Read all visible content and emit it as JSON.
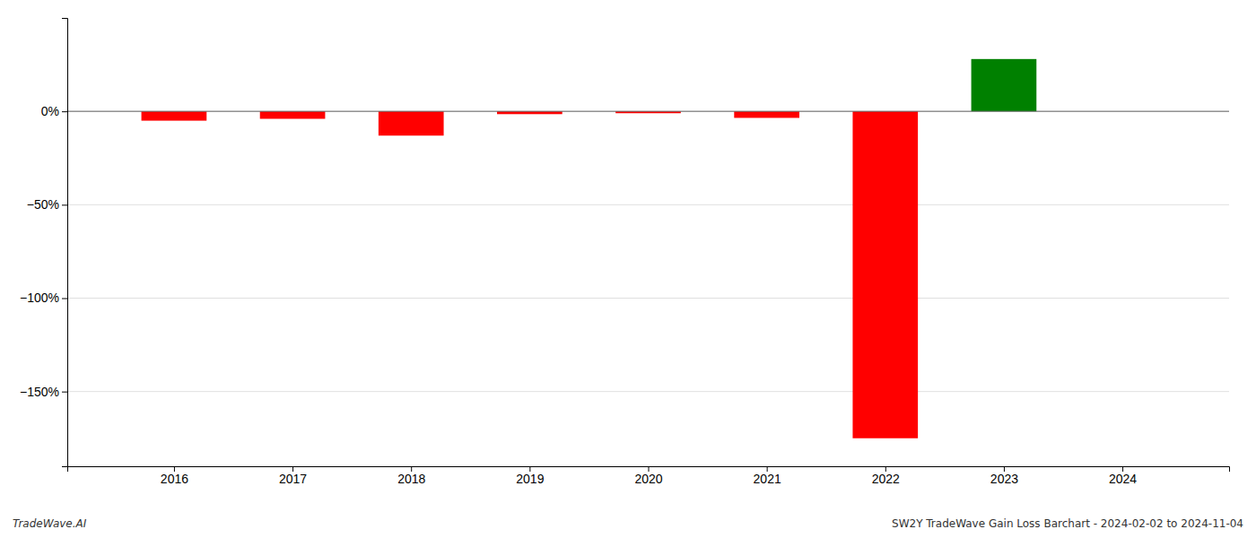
{
  "chart_data": {
    "type": "bar",
    "x": [
      2016,
      2017,
      2018,
      2019,
      2020,
      2021,
      2022,
      2023
    ],
    "values": [
      -5.0,
      -4.0,
      -13.0,
      -1.5,
      -1.0,
      -3.5,
      -175.0,
      28.0
    ],
    "colors": [
      "#ff0000",
      "#ff0000",
      "#ff0000",
      "#ff0000",
      "#ff0000",
      "#ff0000",
      "#ff0000",
      "#008000"
    ],
    "xlim": [
      2015.1,
      2024.9
    ],
    "xticks": [
      2016,
      2017,
      2018,
      2019,
      2020,
      2021,
      2022,
      2023,
      2024
    ],
    "ylim": [
      -190,
      50
    ],
    "yticks": [
      {
        "value": 0,
        "label": "0%"
      },
      {
        "value": -50,
        "label": "−50%"
      },
      {
        "value": -100,
        "label": "−100%"
      },
      {
        "value": -150,
        "label": "−150%"
      }
    ],
    "grid": true,
    "annotations": [
      "TradeWave.AI",
      "SW2Y TradeWave Gain Loss Barchart - 2024-02-02 to 2024-11-04"
    ]
  }
}
